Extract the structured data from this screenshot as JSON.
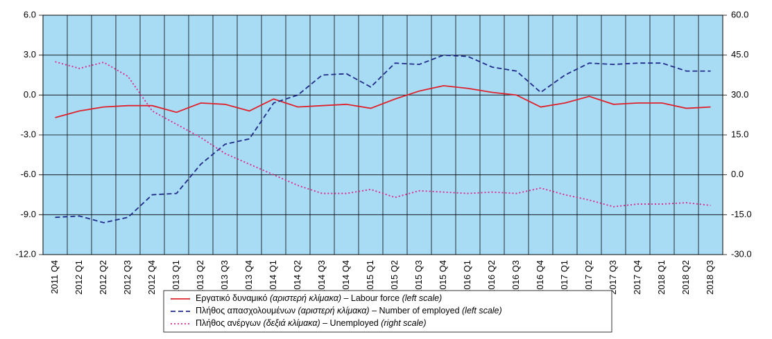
{
  "chart_data": {
    "type": "line",
    "categories": [
      "2011 Q4",
      "2012 Q1",
      "2012 Q2",
      "2012 Q3",
      "2012 Q4",
      "2013 Q1",
      "2013 Q2",
      "2013 Q3",
      "2013 Q4",
      "2014 Q1",
      "2014 Q2",
      "2014 Q3",
      "2014 Q4",
      "2015 Q1",
      "2015 Q2",
      "2015 Q3",
      "2015 Q4",
      "2016 Q1",
      "2016 Q2",
      "2016 Q3",
      "2016 Q4",
      "2017 Q1",
      "2017 Q2",
      "2017 Q3",
      "2017 Q4",
      "2018 Q1",
      "2018 Q2",
      "2018 Q3"
    ],
    "series": [
      {
        "name": "Εργατικό δυναμικό (αριστερή κλίμακα) – Labour force (left scale)",
        "color": "#e0202a",
        "dash": "solid",
        "values": [
          -1.7,
          -1.2,
          -0.9,
          -0.8,
          -0.8,
          -1.3,
          -0.6,
          -0.7,
          -1.2,
          -0.3,
          -0.9,
          -0.8,
          -0.7,
          -1.0,
          -0.3,
          0.3,
          0.7,
          0.5,
          0.2,
          0.0,
          -0.9,
          -0.6,
          -0.1,
          -0.7,
          -0.6,
          -0.6,
          -1.0,
          -0.9
        ]
      },
      {
        "name": "Πλήθος απασχολουμένων (αριστερή κλίμακα) – Number of employed (left scale)",
        "color": "#1f2a8a",
        "dash": "dashed",
        "values": [
          -9.2,
          -9.1,
          -9.6,
          -9.2,
          -7.5,
          -7.4,
          -5.2,
          -3.7,
          -3.3,
          -0.6,
          0.0,
          1.5,
          1.6,
          0.6,
          2.4,
          2.3,
          3.0,
          2.9,
          2.1,
          1.8,
          0.2,
          1.5,
          2.4,
          2.3,
          2.4,
          2.4,
          1.8,
          1.8
        ]
      },
      {
        "name": "Πλήθος ανέργων (δεξιά κλίμακα) – Unemployed  (right scale)",
        "color": "#e0208a",
        "dash": "dotted",
        "axis": "y2",
        "values": [
          42.5,
          40,
          42.3,
          37,
          24,
          19,
          14,
          8,
          4,
          0,
          -4,
          -7,
          -7,
          -5.5,
          -8.5,
          -6,
          -6.5,
          -7,
          -6.5,
          -7,
          -5,
          -7.5,
          -9.5,
          -12,
          -11,
          -11,
          -10.5,
          -11.5
        ]
      }
    ],
    "ylim": [
      -12,
      6
    ],
    "yticks": [
      {
        "value": -12,
        "label": "-12.0"
      },
      {
        "value": -9,
        "label": "-9.0"
      },
      {
        "value": -6,
        "label": "-6.0"
      },
      {
        "value": -3,
        "label": "-3.0"
      },
      {
        "value": 0,
        "label": "0.0"
      },
      {
        "value": 3,
        "label": "3.0"
      },
      {
        "value": 6,
        "label": "6.0"
      }
    ],
    "y2lim": [
      -30,
      60
    ],
    "y2ticks": [
      {
        "value": -30,
        "label": "-30.0"
      },
      {
        "value": -15,
        "label": "-15.0"
      },
      {
        "value": 0,
        "label": "0.0"
      },
      {
        "value": 15,
        "label": "15.0"
      },
      {
        "value": 30,
        "label": "30.0"
      },
      {
        "value": 45,
        "label": "45.0"
      },
      {
        "value": 60,
        "label": "60.0"
      }
    ],
    "grid": true,
    "background": "#a8dcf5",
    "legend": "bottom"
  }
}
